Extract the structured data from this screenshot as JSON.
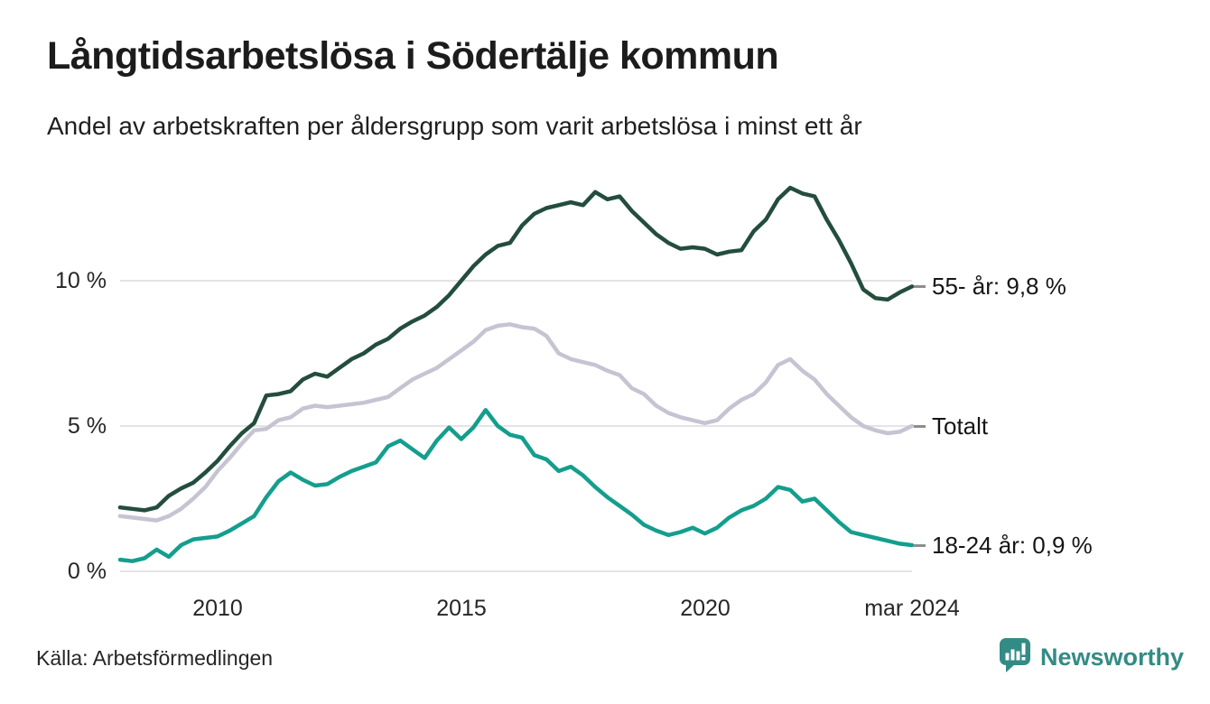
{
  "chart_data": {
    "type": "line",
    "title": "Långtidsarbetslösa i Södertälje kommun",
    "subtitle": "Andel av arbetskraften per åldersgrupp som varit arbetslösa i minst ett år",
    "x_range": [
      2008,
      2024.25
    ],
    "ylim": [
      0,
      13.75
    ],
    "grid": "horizontal",
    "legend_position": "right-end-labels",
    "x_axis_ticks": [
      {
        "label": "2010",
        "year": 2010
      },
      {
        "label": "2015",
        "year": 2015
      },
      {
        "label": "2020",
        "year": 2020
      },
      {
        "label": "mar 2024",
        "year": 2024.25
      }
    ],
    "y_axis_ticks": [
      {
        "label": "0 %",
        "value": 0
      },
      {
        "label": "5 %",
        "value": 5
      },
      {
        "label": "10 %",
        "value": 10
      }
    ],
    "x": [
      2008,
      2008.25,
      2008.5,
      2008.75,
      2009,
      2009.25,
      2009.5,
      2009.75,
      2010,
      2010.25,
      2010.5,
      2010.75,
      2011,
      2011.25,
      2011.5,
      2011.75,
      2012,
      2012.25,
      2012.5,
      2012.75,
      2013,
      2013.25,
      2013.5,
      2013.75,
      2014,
      2014.25,
      2014.5,
      2014.75,
      2015,
      2015.25,
      2015.5,
      2015.75,
      2016,
      2016.25,
      2016.5,
      2016.75,
      2017,
      2017.25,
      2017.5,
      2017.75,
      2018,
      2018.25,
      2018.5,
      2018.75,
      2019,
      2019.25,
      2019.5,
      2019.75,
      2020,
      2020.25,
      2020.5,
      2020.75,
      2021,
      2021.25,
      2021.5,
      2021.75,
      2022,
      2022.25,
      2022.5,
      2022.75,
      2023,
      2023.25,
      2023.5,
      2023.75,
      2024,
      2024.25
    ],
    "series": [
      {
        "id": "55-ar",
        "name": "55- år",
        "end_label": "55- år: 9,8 %",
        "end_value": "9,8 %",
        "color": "#234d3c",
        "values": [
          2.2,
          2.15,
          2.1,
          2.2,
          2.6,
          2.85,
          3.05,
          3.4,
          3.8,
          4.3,
          4.75,
          5.1,
          6.05,
          6.1,
          6.2,
          6.6,
          6.8,
          6.7,
          7.0,
          7.3,
          7.5,
          7.8,
          8.0,
          8.35,
          8.6,
          8.8,
          9.1,
          9.5,
          10.0,
          10.5,
          10.9,
          11.2,
          11.3,
          11.9,
          12.3,
          12.5,
          12.6,
          12.7,
          12.6,
          13.05,
          12.8,
          12.9,
          12.4,
          12.0,
          11.6,
          11.3,
          11.1,
          11.15,
          11.1,
          10.9,
          11.0,
          11.05,
          11.7,
          12.1,
          12.8,
          13.2,
          13.0,
          12.9,
          12.1,
          11.4,
          10.6,
          9.7,
          9.4,
          9.35,
          9.6,
          9.8
        ]
      },
      {
        "id": "totalt",
        "name": "Totalt",
        "end_label": "Totalt",
        "end_value": "",
        "color": "#c6c4d2",
        "values": [
          1.9,
          1.85,
          1.8,
          1.75,
          1.9,
          2.15,
          2.5,
          2.9,
          3.45,
          3.9,
          4.4,
          4.85,
          4.9,
          5.2,
          5.3,
          5.6,
          5.7,
          5.65,
          5.7,
          5.75,
          5.8,
          5.9,
          6.0,
          6.3,
          6.6,
          6.8,
          7.0,
          7.3,
          7.6,
          7.9,
          8.3,
          8.45,
          8.5,
          8.4,
          8.35,
          8.1,
          7.5,
          7.3,
          7.2,
          7.1,
          6.9,
          6.75,
          6.3,
          6.1,
          5.7,
          5.45,
          5.3,
          5.2,
          5.1,
          5.2,
          5.6,
          5.9,
          6.1,
          6.5,
          7.1,
          7.3,
          6.9,
          6.6,
          6.1,
          5.7,
          5.3,
          5.0,
          4.85,
          4.75,
          4.8,
          5.0
        ]
      },
      {
        "id": "18-24-ar",
        "name": "18-24 år",
        "end_label": "18-24 år: 0,9 %",
        "end_value": "0,9 %",
        "color": "#149e8d",
        "values": [
          0.4,
          0.35,
          0.45,
          0.75,
          0.5,
          0.9,
          1.1,
          1.15,
          1.2,
          1.4,
          1.65,
          1.9,
          2.55,
          3.1,
          3.4,
          3.15,
          2.95,
          3.0,
          3.25,
          3.45,
          3.6,
          3.75,
          4.3,
          4.5,
          4.2,
          3.9,
          4.5,
          4.95,
          4.55,
          4.95,
          5.55,
          5.0,
          4.7,
          4.6,
          4.0,
          3.85,
          3.45,
          3.6,
          3.3,
          2.9,
          2.55,
          2.25,
          1.95,
          1.6,
          1.4,
          1.25,
          1.35,
          1.5,
          1.3,
          1.5,
          1.85,
          2.1,
          2.25,
          2.5,
          2.9,
          2.8,
          2.4,
          2.5,
          2.1,
          1.7,
          1.35,
          1.25,
          1.15,
          1.05,
          0.95,
          0.9
        ]
      }
    ]
  },
  "footer": {
    "source": "Källa: Arbetsförmedlingen",
    "brand": "Newsworthy",
    "brand_color": "#338b85"
  }
}
